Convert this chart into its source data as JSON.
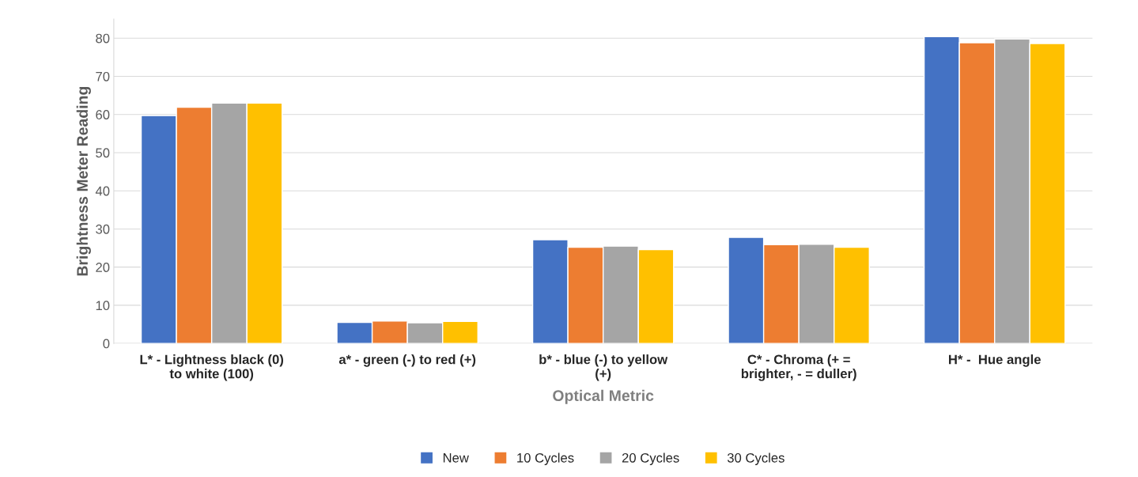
{
  "chart_data": {
    "type": "bar",
    "xlabel": "Optical Metric",
    "ylabel": "Brightness Meter Reading",
    "categories": [
      "L* - Lightness black (0)\nto white (100)",
      "a* - green (-) to red (+)",
      "b* - blue (-) to yellow\n(+)",
      "C* - Chroma (+ =\nbrighter, - = duller)",
      "H* -  Hue angle"
    ],
    "series": [
      {
        "name": "New",
        "color": "#4472c4",
        "values": [
          59.7,
          5.5,
          27.2,
          27.8,
          80.4
        ]
      },
      {
        "name": "10 Cycles",
        "color": "#ed7d31",
        "values": [
          61.9,
          5.9,
          25.2,
          25.9,
          78.8
        ]
      },
      {
        "name": "20 Cycles",
        "color": "#a5a5a5",
        "values": [
          63.0,
          5.4,
          25.5,
          26.0,
          79.8
        ]
      },
      {
        "name": "30 Cycles",
        "color": "#ffc000",
        "values": [
          63.0,
          5.8,
          24.6,
          25.2,
          78.6
        ]
      }
    ],
    "ylim": [
      0,
      85
    ],
    "yticks": [
      0,
      10,
      20,
      30,
      40,
      50,
      60,
      70,
      80
    ],
    "grid": "y",
    "legend": "bottom"
  }
}
